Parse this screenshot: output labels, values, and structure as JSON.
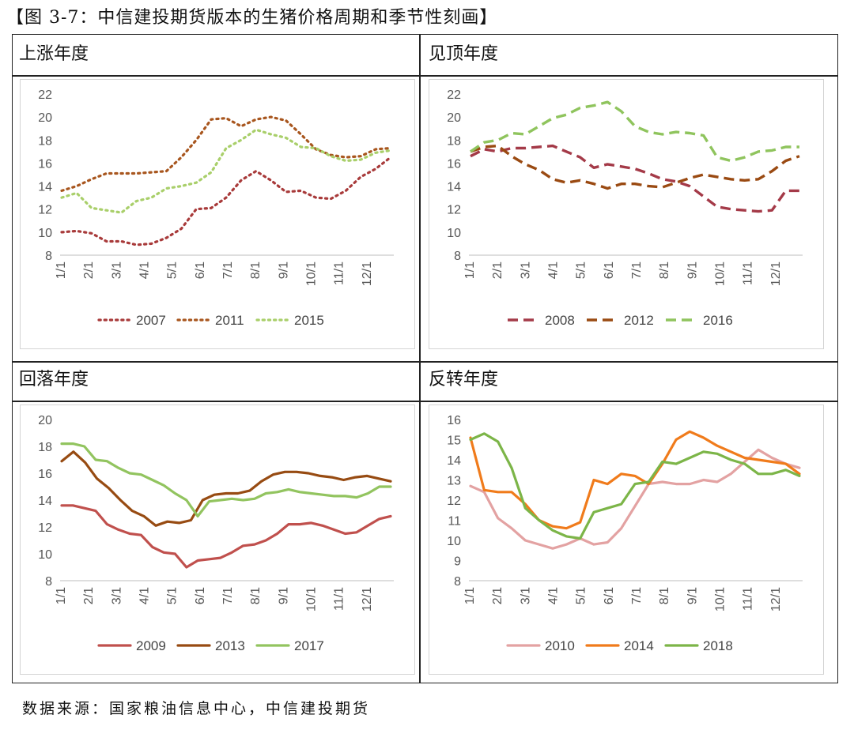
{
  "figure_title": "【图 3-7：中信建投期货版本的生猪价格周期和季节性刻画】",
  "source_note": "数据来源：国家粮油信息中心，中信建投期货",
  "month_ticks": [
    "1/1",
    "2/1",
    "3/1",
    "4/1",
    "5/1",
    "6/1",
    "7/1",
    "8/1",
    "9/1",
    "10/1",
    "11/1",
    "12/1"
  ],
  "chart_data": [
    {
      "type": "line",
      "panel_label": "上涨年度",
      "ylim": [
        8,
        22
      ],
      "yticks": [
        "8",
        "10",
        "12",
        "14",
        "16",
        "18",
        "20",
        "22"
      ],
      "line_style": "dotted",
      "series": [
        {
          "name": "2007",
          "color": "#a83a3a",
          "values": [
            10,
            10.1,
            9.9,
            9.2,
            9.2,
            8.9,
            9,
            9.5,
            10.3,
            12,
            12.1,
            13,
            14.5,
            15.3,
            14.5,
            13.5,
            13.6,
            13,
            12.9,
            13.6,
            14.8,
            15.5,
            16.5
          ]
        },
        {
          "name": "2011",
          "color": "#a8561e",
          "values": [
            13.6,
            14,
            14.6,
            15.1,
            15.1,
            15.1,
            15.2,
            15.3,
            16.5,
            18,
            19.8,
            19.9,
            19.2,
            19.8,
            20,
            19.7,
            18.5,
            17.2,
            16.7,
            16.5,
            16.6,
            17.2,
            17.3
          ]
        },
        {
          "name": "2015",
          "color": "#a9cf6a",
          "values": [
            13,
            13.4,
            12.1,
            11.9,
            11.7,
            12.7,
            13,
            13.8,
            14,
            14.3,
            15.2,
            17.3,
            18,
            18.9,
            18.5,
            18.2,
            17.4,
            17.3,
            16.6,
            16.2,
            16.3,
            16.9,
            17.1
          ]
        }
      ]
    },
    {
      "type": "line",
      "panel_label": "见顶年度",
      "ylim": [
        8,
        22
      ],
      "yticks": [
        "8",
        "10",
        "12",
        "14",
        "16",
        "18",
        "20",
        "22"
      ],
      "line_style": "dashed",
      "series": [
        {
          "name": "2008",
          "color": "#a43a48",
          "values": [
            16.6,
            17.2,
            17,
            17.3,
            17.3,
            17.4,
            17.5,
            17,
            16.5,
            15.6,
            15.9,
            15.7,
            15.5,
            15.1,
            14.6,
            14.4,
            14,
            13.1,
            12.2,
            12,
            11.9,
            11.8,
            11.9,
            13.6,
            13.6
          ]
        },
        {
          "name": "2012",
          "color": "#9a4a12",
          "values": [
            17,
            17.4,
            17.5,
            16.6,
            15.9,
            15.4,
            14.6,
            14.3,
            14.5,
            14.2,
            13.8,
            14.2,
            14.2,
            14,
            13.9,
            14.3,
            14.7,
            15,
            14.8,
            14.6,
            14.5,
            14.6,
            15.3,
            16.2,
            16.6
          ]
        },
        {
          "name": "2016",
          "color": "#8fc45d",
          "values": [
            17,
            17.8,
            18,
            18.6,
            18.5,
            19.2,
            19.9,
            20.2,
            20.8,
            21,
            21.3,
            20.5,
            19.2,
            18.7,
            18.5,
            18.7,
            18.6,
            18.4,
            16.5,
            16.2,
            16.5,
            17,
            17.1,
            17.4,
            17.4
          ]
        }
      ]
    },
    {
      "type": "line",
      "panel_label": "回落年度",
      "ylim": [
        8,
        20
      ],
      "yticks": [
        "8",
        "10",
        "12",
        "14",
        "16",
        "18",
        "20"
      ],
      "line_style": "solid",
      "series": [
        {
          "name": "2009",
          "color": "#c0504d",
          "values": [
            13.6,
            13.6,
            13.4,
            13.2,
            12.2,
            11.8,
            11.5,
            11.4,
            10.5,
            10.1,
            10,
            9,
            9.5,
            9.6,
            9.7,
            10.1,
            10.6,
            10.7,
            11,
            11.5,
            12.2,
            12.2,
            12.3,
            12.1,
            11.8,
            11.5,
            11.6,
            12.1,
            12.6,
            12.8
          ]
        },
        {
          "name": "2013",
          "color": "#974b12",
          "values": [
            16.9,
            17.6,
            16.8,
            15.6,
            14.9,
            14,
            13.2,
            12.8,
            12.1,
            12.4,
            12.3,
            12.5,
            14,
            14.4,
            14.5,
            14.5,
            14.7,
            15.4,
            15.9,
            16.1,
            16.1,
            16,
            15.8,
            15.7,
            15.5,
            15.7,
            15.8,
            15.6,
            15.4
          ]
        },
        {
          "name": "2017",
          "color": "#92c45f",
          "values": [
            18.2,
            18.2,
            18,
            17,
            16.9,
            16.4,
            16,
            15.9,
            15.5,
            15.1,
            14.5,
            14,
            12.8,
            13.9,
            14,
            14.1,
            14,
            14.1,
            14.5,
            14.6,
            14.8,
            14.6,
            14.5,
            14.4,
            14.3,
            14.3,
            14.2,
            14.5,
            15,
            15
          ]
        }
      ]
    },
    {
      "type": "line",
      "panel_label": "反转年度",
      "ylim": [
        8,
        16
      ],
      "yticks": [
        "8",
        "9",
        "10",
        "11",
        "12",
        "13",
        "14",
        "15",
        "16"
      ],
      "line_style": "solid",
      "series": [
        {
          "name": "2010",
          "color": "#e3a2a2",
          "values": [
            12.7,
            12.4,
            11.1,
            10.6,
            10,
            9.8,
            9.6,
            9.8,
            10.1,
            9.8,
            9.9,
            10.6,
            11.7,
            12.8,
            12.9,
            12.8,
            12.8,
            13,
            12.9,
            13.3,
            13.9,
            14.5,
            14.1,
            13.8,
            13.6
          ]
        },
        {
          "name": "2014",
          "color": "#f07b1b",
          "values": [
            15.1,
            12.5,
            12.4,
            12.4,
            11.8,
            11,
            10.7,
            10.6,
            10.9,
            13,
            12.8,
            13.3,
            13.2,
            12.8,
            13.8,
            15,
            15.4,
            15.1,
            14.7,
            14.4,
            14.1,
            14,
            13.9,
            13.8,
            13.3
          ]
        },
        {
          "name": "2018",
          "color": "#7cb548",
          "values": [
            15,
            15.3,
            14.9,
            13.6,
            11.6,
            11,
            10.5,
            10.2,
            10.1,
            11.4,
            11.6,
            11.8,
            12.8,
            12.9,
            13.9,
            13.8,
            14.1,
            14.4,
            14.3,
            14,
            13.8,
            13.3,
            13.3,
            13.5,
            13.2
          ]
        }
      ]
    }
  ]
}
